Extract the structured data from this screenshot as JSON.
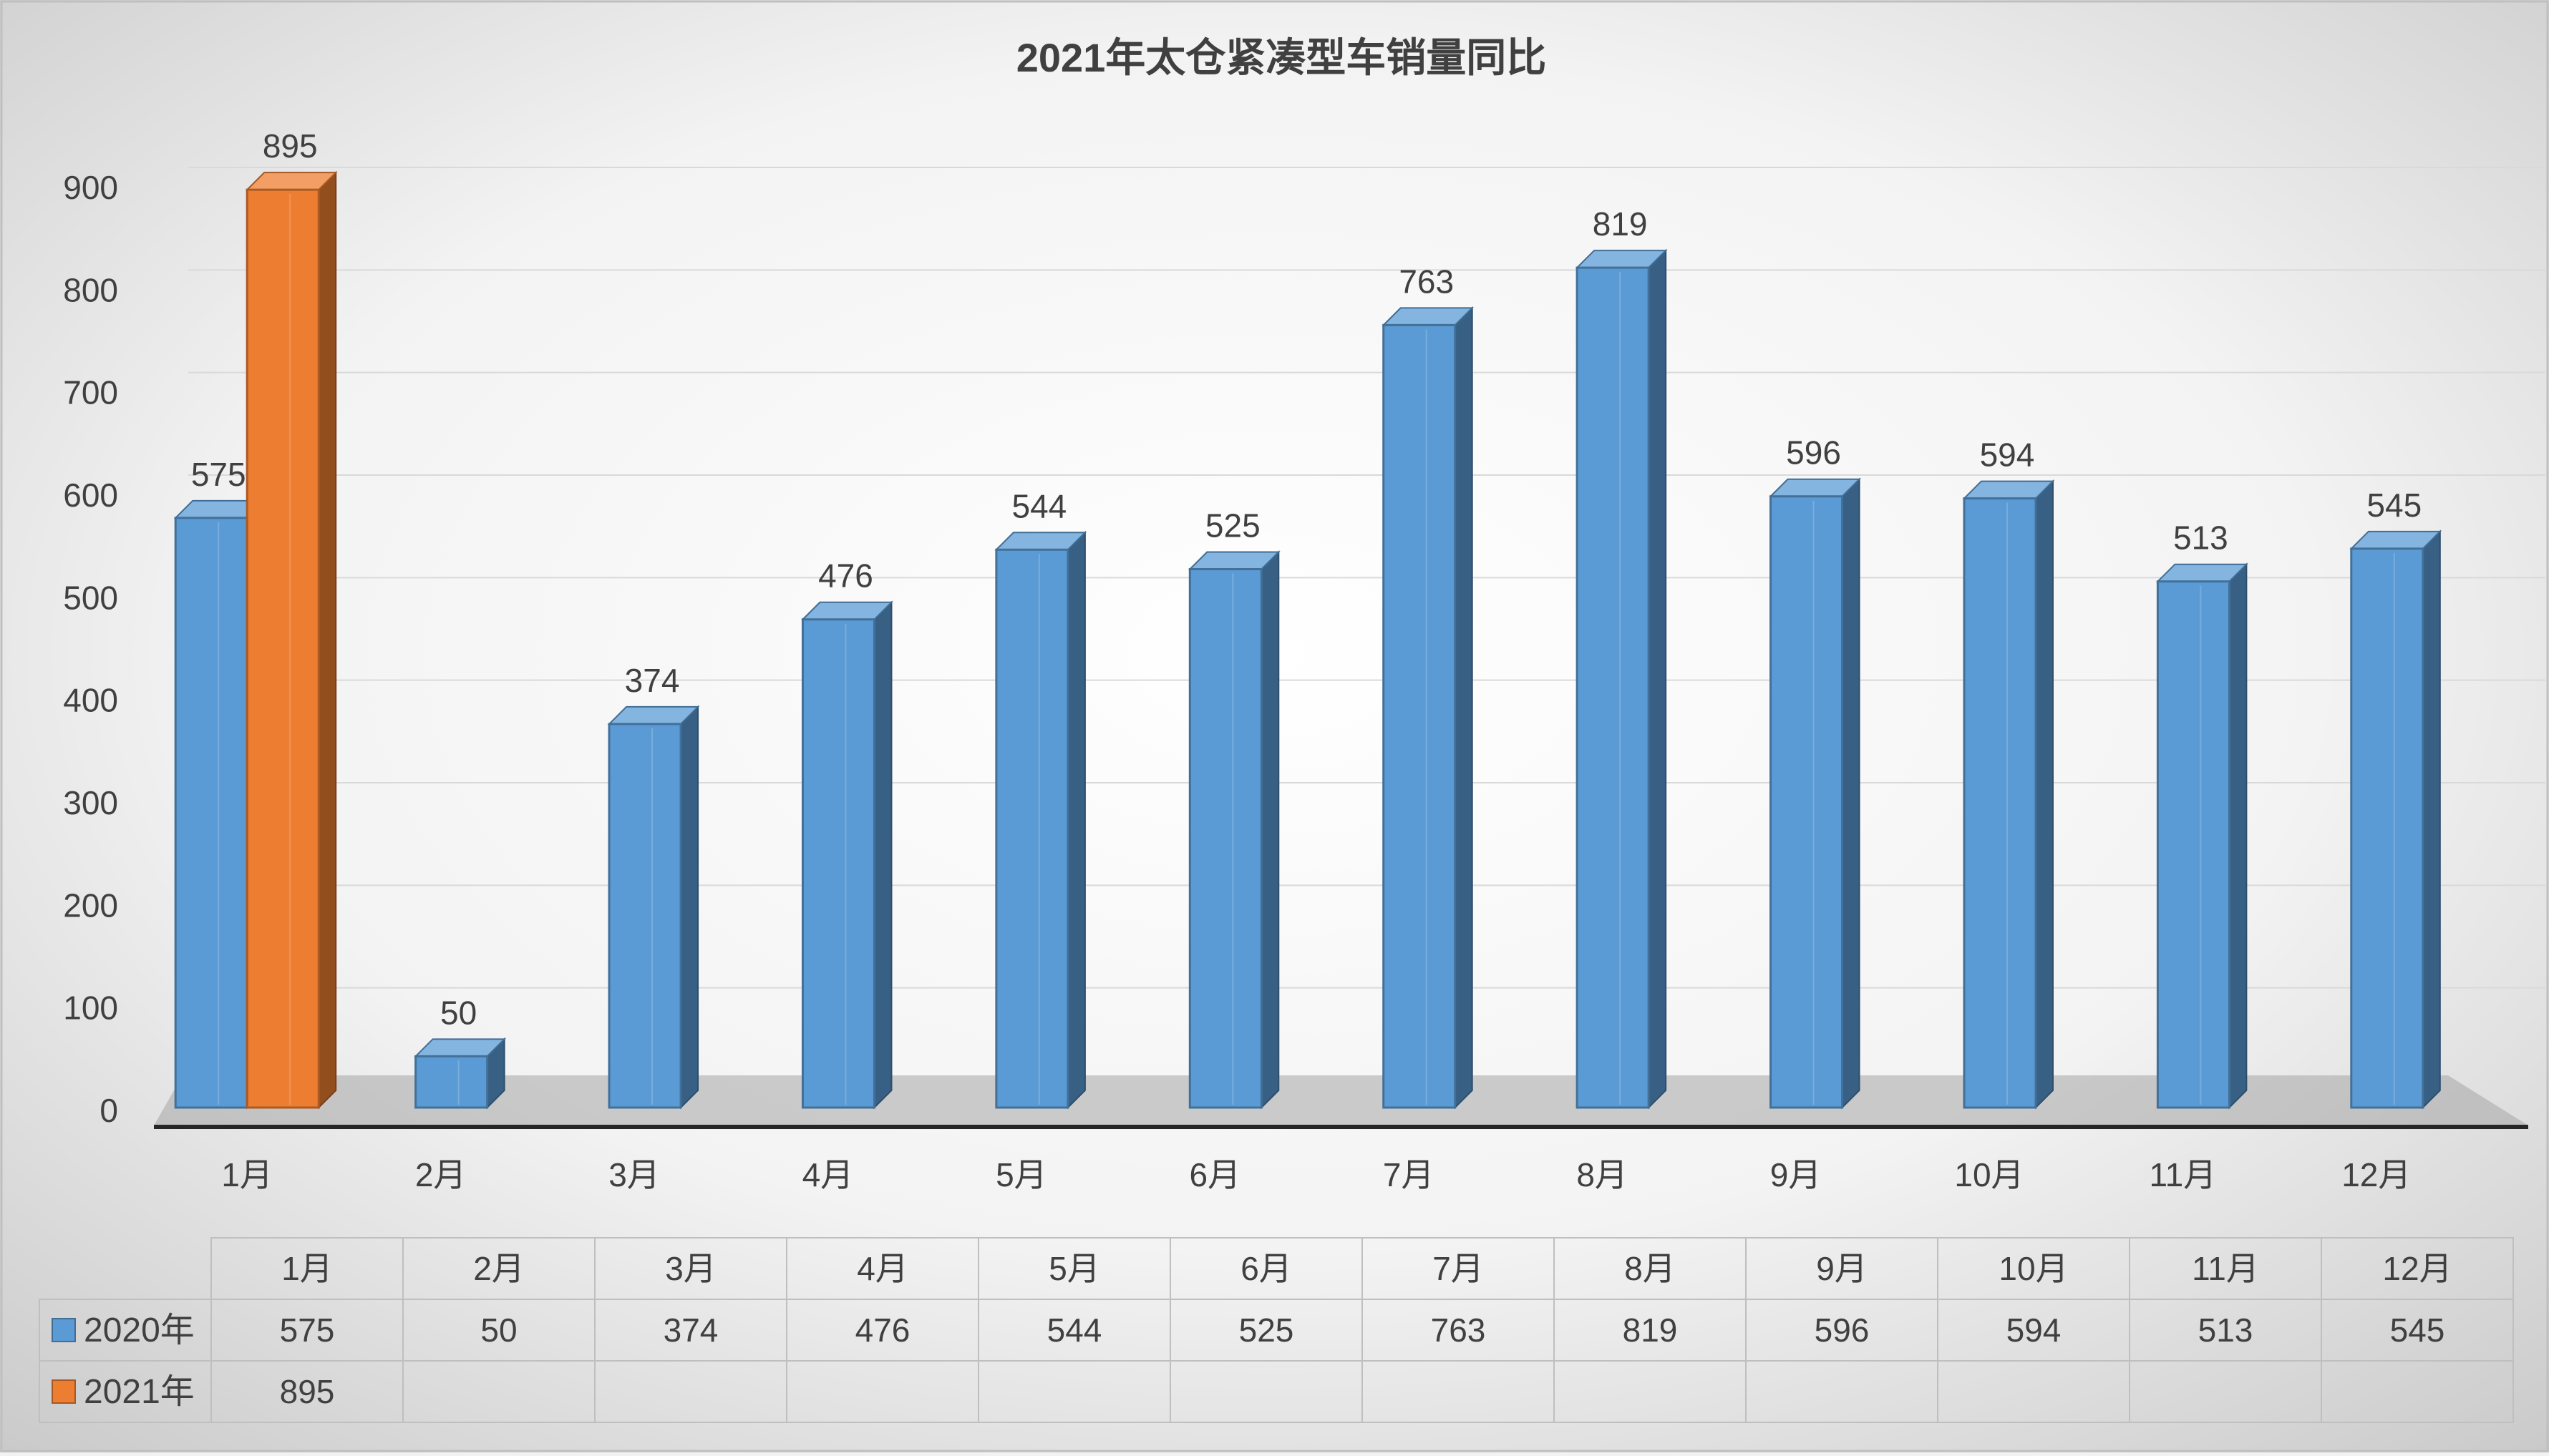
{
  "chart_data": {
    "type": "bar",
    "title": "2021年太仓紧凑型车销量同比",
    "categories": [
      "1月",
      "2月",
      "3月",
      "4月",
      "5月",
      "6月",
      "7月",
      "8月",
      "9月",
      "10月",
      "11月",
      "12月"
    ],
    "series": [
      {
        "name": "2020年",
        "color": "#5b9bd5",
        "values": [
          575,
          50,
          374,
          476,
          544,
          525,
          763,
          819,
          596,
          594,
          513,
          545
        ]
      },
      {
        "name": "2021年",
        "color": "#ed7d31",
        "values": [
          895,
          null,
          null,
          null,
          null,
          null,
          null,
          null,
          null,
          null,
          null,
          null
        ]
      }
    ],
    "ylim": [
      0,
      900
    ],
    "yticks": [
      0,
      100,
      200,
      300,
      400,
      500,
      600,
      700,
      800,
      900
    ],
    "grid": true,
    "legend_placement": "data-table-below"
  }
}
